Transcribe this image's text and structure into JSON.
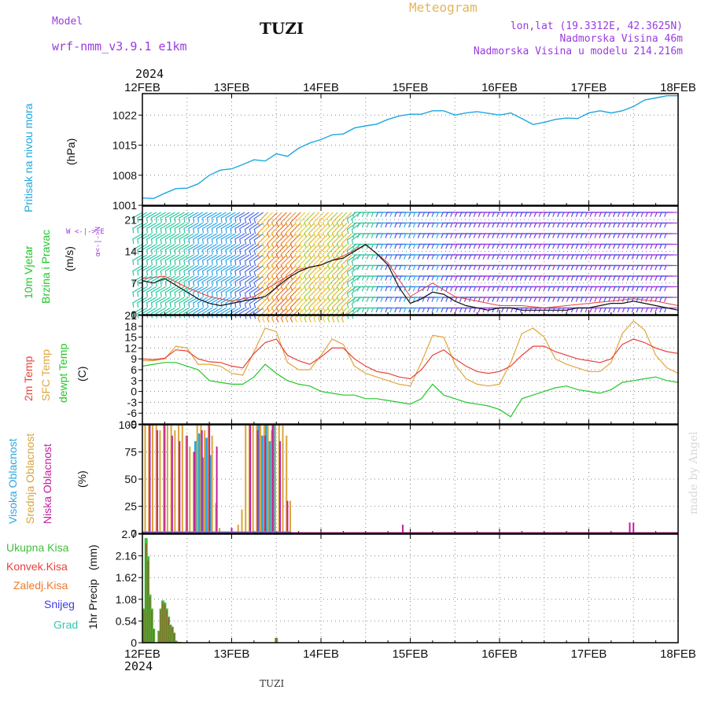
{
  "header": {
    "model_label": "Model",
    "model_value": "wrf-nmm_v3.9.1 e1km",
    "title": "TUZI",
    "meteogram": "Meteogram",
    "lonlat": "lon,lat (19.3312E, 42.3625N)",
    "elevation": "Nadmorska Visina 46m",
    "model_elevation": "Nadmorska Visina u modelu 214.216m",
    "year_top": "2024",
    "year_bottom": "2024",
    "footer": "TUZI",
    "credit": "made by Angel"
  },
  "colors": {
    "pressure": "#1ea7e1",
    "temp2m": "#e8413a",
    "sfc": "#e0a63a",
    "dew": "#22c72a",
    "cloud_high": "#2aa9e0",
    "cloud_mid": "#d8a53a",
    "cloud_low": "#c21f9e",
    "precip_total": "#3fbf3a",
    "precip_conv": "#e8413a",
    "precip_frozen": "#f07a2a",
    "snow": "#3b3be6",
    "graupel": "#35c6b0",
    "header_purple": "#9a3be0",
    "header_gold": "#e3b55a"
  },
  "chart_data": [
    {
      "type": "line",
      "id": "pressure",
      "ylabel": "Pritisak na nivou mora",
      "unit": "(hPa)",
      "xlim": [
        "2024-02-12T00",
        "2024-02-18T00"
      ],
      "x_ticks": [
        "12FEB",
        "13FEB",
        "14FEB",
        "15FEB",
        "16FEB",
        "17FEB",
        "18FEB"
      ],
      "ylim": [
        1001,
        1027
      ],
      "y_ticks": [
        "1001",
        "1008",
        "1015",
        "1022"
      ],
      "grid": true,
      "series": [
        {
          "x": [
            0,
            3,
            6,
            9,
            12,
            15,
            18,
            21,
            24,
            27,
            30,
            33,
            36,
            39,
            42,
            45,
            48,
            51,
            54,
            57,
            60,
            63,
            66,
            69,
            72,
            75,
            78,
            81,
            84,
            87,
            90,
            93,
            96,
            99,
            102,
            105,
            108,
            111,
            114,
            117,
            120,
            123,
            126,
            129,
            132,
            135,
            138,
            141,
            144
          ],
          "values": [
            1002.7,
            1002.6,
            1003.8,
            1004.9,
            1005.0,
            1006.0,
            1008.0,
            1009.2,
            1009.5,
            1010.5,
            1011.6,
            1011.3,
            1013.0,
            1012.4,
            1014.3,
            1015.5,
            1016.3,
            1017.4,
            1017.6,
            1019.0,
            1019.5,
            1019.9,
            1021.0,
            1021.8,
            1022.2,
            1022.2,
            1023.0,
            1023.0,
            1022.0,
            1022.5,
            1022.8,
            1022.4,
            1022.0,
            1022.5,
            1021.2,
            1019.8,
            1020.3,
            1021.0,
            1021.3,
            1021.2,
            1022.5,
            1023.0,
            1022.5,
            1023.0,
            1024.0,
            1025.5,
            1026.0,
            1026.5,
            1026.5
          ]
        }
      ]
    },
    {
      "type": "line",
      "id": "wind",
      "ylabel": "10m Vjetar Brzina i Pravac",
      "unit": "(m/s)",
      "compass": "N ^ | > E, W <-- ?",
      "ylim": [
        0,
        24
      ],
      "y_ticks": [
        "0",
        "7",
        "14",
        "21"
      ],
      "grid": true,
      "series": [
        {
          "name": "speed",
          "x": [
            0,
            3,
            6,
            9,
            12,
            15,
            18,
            21,
            24,
            27,
            30,
            33,
            36,
            39,
            42,
            45,
            48,
            51,
            54,
            57,
            60,
            63,
            66,
            69,
            72,
            75,
            78,
            81,
            84,
            87,
            90,
            93,
            96,
            99,
            102,
            105,
            108,
            111,
            114,
            117,
            120,
            123,
            126,
            129,
            132,
            135,
            138,
            141,
            144
          ],
          "values": [
            7.5,
            7.0,
            8.0,
            6.5,
            5.0,
            3.5,
            2.5,
            2.0,
            2.5,
            3.0,
            3.5,
            4.0,
            6.0,
            8.0,
            9.5,
            10.5,
            11.0,
            12.0,
            12.5,
            14.0,
            15.5,
            13.5,
            11.0,
            6.0,
            2.5,
            3.5,
            5.0,
            4.5,
            3.0,
            2.0,
            1.5,
            1.0,
            1.5,
            1.5,
            1.0,
            1.0,
            1.0,
            1.0,
            1.0,
            1.5,
            1.5,
            2.0,
            2.5,
            2.5,
            3.0,
            2.5,
            2.0,
            1.5,
            1.0
          ]
        },
        {
          "name": "gust",
          "x": [
            0,
            6,
            12,
            18,
            24,
            30,
            36,
            42,
            48,
            54,
            60,
            66,
            72,
            78,
            84,
            90,
            96,
            102,
            108,
            114,
            120,
            126,
            132,
            138,
            144
          ],
          "values": [
            8.0,
            8.5,
            6.0,
            4.0,
            3.0,
            4.0,
            7.0,
            10.0,
            11.0,
            13.0,
            15.5,
            11.5,
            4.0,
            7.0,
            4.0,
            3.0,
            2.0,
            2.0,
            1.5,
            2.0,
            2.5,
            3.0,
            3.5,
            3.0,
            2.0
          ]
        }
      ]
    },
    {
      "type": "line",
      "id": "temperature",
      "ylabel": "2m Temp, SFC Temp, dewpt Temp",
      "unit": "(C)",
      "ylim": [
        -9,
        21
      ],
      "y_ticks": [
        "-9",
        "-6",
        "-3",
        "0",
        "3",
        "6",
        "9",
        "12",
        "15",
        "18",
        "21"
      ],
      "grid": true,
      "series": [
        {
          "name": "2m Temp",
          "x": [
            0,
            3,
            6,
            9,
            12,
            15,
            18,
            21,
            24,
            27,
            30,
            33,
            36,
            39,
            42,
            45,
            48,
            51,
            54,
            57,
            60,
            63,
            66,
            69,
            72,
            75,
            78,
            81,
            84,
            87,
            90,
            93,
            96,
            99,
            102,
            105,
            108,
            111,
            114,
            117,
            120,
            123,
            126,
            129,
            132,
            135,
            138,
            141,
            144
          ],
          "values": [
            9.0,
            8.8,
            9.2,
            11.5,
            11.2,
            9.0,
            8.2,
            8.0,
            7.0,
            6.5,
            10.5,
            13.5,
            14.5,
            10.0,
            8.5,
            7.5,
            9.5,
            12.0,
            12.0,
            9.0,
            7.0,
            5.5,
            5.0,
            4.0,
            3.5,
            6.0,
            10.0,
            11.5,
            9.0,
            7.0,
            5.5,
            5.0,
            5.5,
            7.0,
            10.0,
            12.5,
            12.5,
            11.0,
            10.0,
            9.0,
            8.5,
            8.0,
            9.0,
            13.0,
            14.5,
            13.5,
            12.0,
            11.0,
            10.5
          ]
        },
        {
          "name": "SFC Temp",
          "x": [
            0,
            3,
            6,
            9,
            12,
            15,
            18,
            21,
            24,
            27,
            30,
            33,
            36,
            39,
            42,
            45,
            48,
            51,
            54,
            57,
            60,
            63,
            66,
            69,
            72,
            75,
            78,
            81,
            84,
            87,
            90,
            93,
            96,
            99,
            102,
            105,
            108,
            111,
            114,
            117,
            120,
            123,
            126,
            129,
            132,
            135,
            138,
            141,
            144
          ],
          "values": [
            8.5,
            8.5,
            9.0,
            12.5,
            12.0,
            7.5,
            7.5,
            7.0,
            5.0,
            4.5,
            11.0,
            17.5,
            16.5,
            8.0,
            6.0,
            6.0,
            10.0,
            14.5,
            13.0,
            7.0,
            5.0,
            4.0,
            3.0,
            2.0,
            1.5,
            8.0,
            15.5,
            15.0,
            7.5,
            3.5,
            2.0,
            1.5,
            2.0,
            8.0,
            16.0,
            17.5,
            15.0,
            9.0,
            7.5,
            6.5,
            5.5,
            5.5,
            8.0,
            16.0,
            19.5,
            17.0,
            10.0,
            6.5,
            5.0
          ]
        },
        {
          "name": "dewpt Temp",
          "x": [
            0,
            3,
            6,
            9,
            12,
            15,
            18,
            21,
            24,
            27,
            30,
            33,
            36,
            39,
            42,
            45,
            48,
            51,
            54,
            57,
            60,
            63,
            66,
            69,
            72,
            75,
            78,
            81,
            84,
            87,
            90,
            93,
            96,
            99,
            102,
            105,
            108,
            111,
            114,
            117,
            120,
            123,
            126,
            129,
            132,
            135,
            138,
            141,
            144
          ],
          "values": [
            7.0,
            7.5,
            8.0,
            8.0,
            7.0,
            6.0,
            3.0,
            2.5,
            2.0,
            2.0,
            4.0,
            7.5,
            5.0,
            3.0,
            2.0,
            1.5,
            0.0,
            -0.5,
            -1.0,
            -1.0,
            -2.0,
            -2.0,
            -2.5,
            -3.0,
            -3.5,
            -2.0,
            2.0,
            -1.0,
            -2.0,
            -3.0,
            -3.5,
            -4.0,
            -5.0,
            -7.0,
            -2.0,
            -1.0,
            0.0,
            1.0,
            1.5,
            0.5,
            0.0,
            -0.5,
            0.5,
            2.5,
            3.0,
            3.5,
            4.0,
            3.0,
            2.5
          ]
        }
      ]
    },
    {
      "type": "bar",
      "id": "cloud",
      "ylabel": "Visoka Oblacnost, Srednja Oblacnost, Niska Oblacnost",
      "unit": "(%)",
      "ylim": [
        0,
        100
      ],
      "y_ticks": [
        "0",
        "25",
        "50",
        "75",
        "100"
      ],
      "grid": true,
      "series": [
        {
          "name": "Visoka Oblacnost",
          "x": [
            14,
            15,
            16,
            17,
            18,
            31,
            32,
            33,
            34,
            35
          ],
          "values": [
            85,
            92,
            70,
            88,
            72,
            100,
            90,
            100,
            85,
            100
          ]
        },
        {
          "name": "Srednja Oblacnost",
          "x": [
            1,
            2,
            3,
            4,
            5,
            6,
            7,
            8,
            9,
            10,
            11,
            12,
            13,
            14,
            15,
            16,
            17,
            18,
            19,
            20,
            21,
            26,
            27,
            28,
            29,
            30,
            31,
            32,
            33,
            34,
            35,
            36,
            37,
            38,
            39,
            40
          ],
          "values": [
            100,
            100,
            100,
            100,
            95,
            100,
            100,
            100,
            95,
            100,
            100,
            90,
            80,
            75,
            100,
            100,
            95,
            100,
            90,
            28,
            5,
            8,
            22,
            100,
            100,
            100,
            100,
            100,
            100,
            100,
            95,
            100,
            100,
            100,
            90,
            30
          ]
        },
        {
          "name": "Niska Oblacnost",
          "x": [
            2,
            4,
            6,
            8,
            10,
            12,
            14,
            16,
            18,
            20,
            24,
            29,
            31,
            33,
            35,
            37,
            39,
            70,
            131,
            132
          ],
          "values": [
            100,
            95,
            100,
            90,
            85,
            90,
            75,
            95,
            100,
            80,
            5,
            100,
            95,
            90,
            100,
            85,
            30,
            8,
            10,
            10
          ]
        }
      ]
    },
    {
      "type": "bar",
      "id": "precip",
      "ylabel": "1hr Precip",
      "unit": "(mm)",
      "ylim": [
        0,
        2.7
      ],
      "y_ticks": [
        "0",
        "0.54",
        "1.08",
        "1.62",
        "2.16",
        "2.7"
      ],
      "legend": [
        "Ukupna Kisa",
        "Konvek.Kisa",
        "Zaledj.Kisa",
        "Snijeg",
        "Grad"
      ],
      "grid": true,
      "series": [
        {
          "name": "Ukupna Kisa",
          "x": [
            0.5,
            1.0,
            1.5,
            2.0,
            2.5,
            3.0,
            4.5,
            5.0,
            5.5,
            6.0,
            6.5,
            7.0,
            7.5,
            8.0,
            8.5,
            9.0,
            9.5,
            10.0,
            36.0
          ],
          "values": [
            0.85,
            2.6,
            2.15,
            1.2,
            0.85,
            0.35,
            0.3,
            0.85,
            1.05,
            1.0,
            0.85,
            0.65,
            0.45,
            0.4,
            0.25,
            0.05,
            0.02,
            0.02,
            0.12
          ]
        }
      ]
    }
  ]
}
